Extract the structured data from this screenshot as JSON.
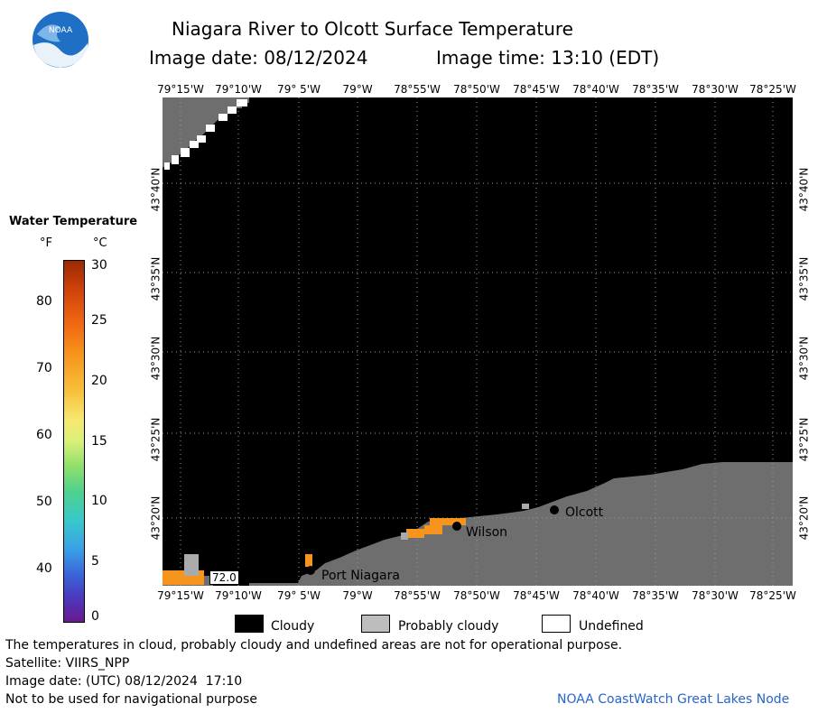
{
  "header": {
    "title": "Niagara River to Olcott Surface Temperature",
    "image_date": "Image date: 08/12/2024",
    "image_time": "Image time: 13:10 (EDT)"
  },
  "logo": {
    "text": "NOAA"
  },
  "map": {
    "top_ticks": [
      "79°15'W",
      "79°10'W",
      "79° 5'W",
      "79°W",
      "78°55'W",
      "78°50'W",
      "78°45'W",
      "78°40'W",
      "78°35'W",
      "78°30'W",
      "78°25'W"
    ],
    "bottom_ticks": [
      "79°15'W",
      "79°10'W",
      "79° 5'W",
      "79°W",
      "78°55'W",
      "78°50'W",
      "78°45'W",
      "78°40'W",
      "78°35'W",
      "78°30'W",
      "78°25'W"
    ],
    "lat_ticks": [
      "43°40'N",
      "43°35'N",
      "43°30'N",
      "43°25'N",
      "43°20'N"
    ],
    "places": {
      "olcott": "Olcott",
      "wilson": "Wilson",
      "port_niagara": "Port Niagara"
    },
    "temp_label": "72.0",
    "colors": {
      "cloudy": "#000000",
      "probably_cloudy": "#6e6e6e",
      "land": "#6e6e6e",
      "warm_water": "#f7941d"
    }
  },
  "scale": {
    "title": "Water Temperature",
    "unit_f": "°F",
    "unit_c": "°C",
    "f_ticks": [
      "80",
      "70",
      "60",
      "50",
      "40"
    ],
    "c_ticks": [
      "30",
      "25",
      "20",
      "15",
      "10",
      "5",
      "0"
    ]
  },
  "legend": {
    "cloudy": "Cloudy",
    "probably_cloudy": "Probably cloudy",
    "undefined": "Undefined"
  },
  "footer": {
    "note": "The temperatures in cloud, probably cloudy and undefined areas are not for operational purpose.",
    "satellite": "Satellite: VIIRS_NPP",
    "utc": "Image date: (UTC) 08/12/2024  17:10",
    "nav": "Not to be used for navigational purpose",
    "node": "NOAA CoastWatch Great Lakes Node"
  }
}
